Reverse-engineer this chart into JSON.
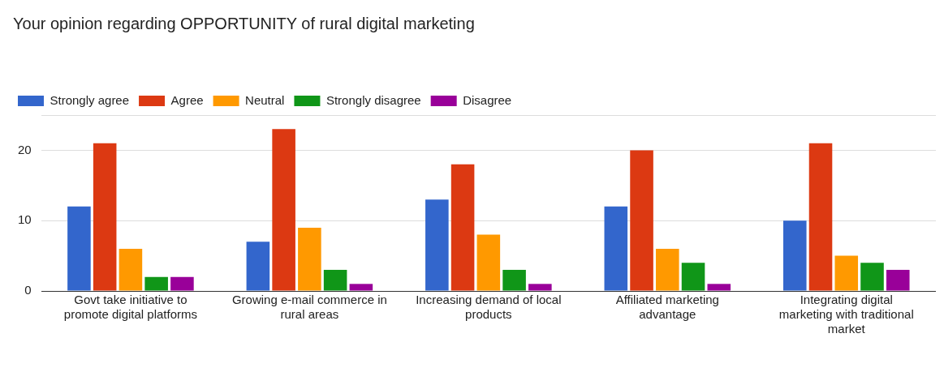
{
  "chart_data": {
    "type": "bar",
    "title": "Your opinion regarding OPPORTUNITY of rural digital marketing",
    "categories": [
      "Govt take initiative to promote digital platforms",
      "Growing e-mail commerce in rural areas",
      "Increasing demand of local products",
      "Affiliated marketing advantage",
      "Integrating digital marketing with traditional market"
    ],
    "series": [
      {
        "name": "Strongly agree",
        "color": "#3366cc",
        "values": [
          12,
          7,
          13,
          12,
          10
        ]
      },
      {
        "name": "Agree",
        "color": "#dc3912",
        "values": [
          21,
          23,
          18,
          20,
          21
        ]
      },
      {
        "name": "Neutral",
        "color": "#ff9900",
        "values": [
          6,
          9,
          8,
          6,
          5
        ]
      },
      {
        "name": "Strongly disagree",
        "color": "#109618",
        "values": [
          2,
          3,
          3,
          4,
          4
        ]
      },
      {
        "name": "Disagree",
        "color": "#990099",
        "values": [
          2,
          1,
          1,
          1,
          3
        ]
      }
    ],
    "ylim": [
      0,
      25
    ],
    "yticks": [
      0,
      10,
      20,
      {
        "value": 25,
        "label": null
      }
    ],
    "grid": "y",
    "legend": "top left"
  }
}
